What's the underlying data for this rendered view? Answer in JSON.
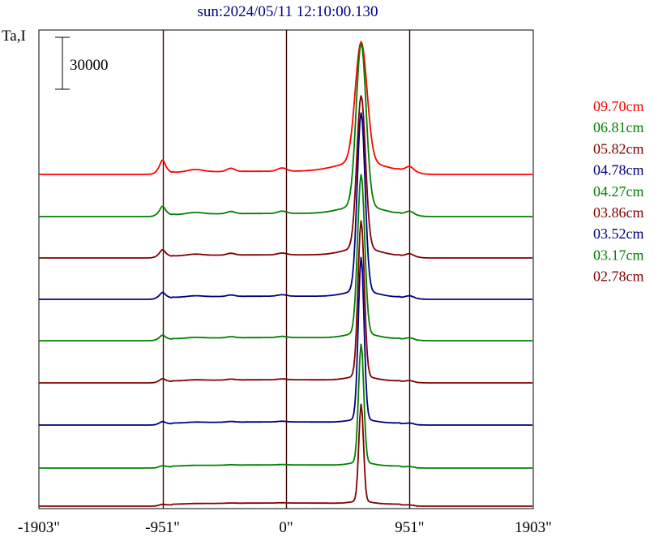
{
  "chart_data": {
    "type": "line",
    "title": "sun:2024/05/11 12:10:00.130",
    "ylabel": "Ta,I",
    "scale_bar_label": "30000",
    "x_ticks": [
      "-1903\"",
      "-951\"",
      "0\"",
      "951\"",
      "1903\""
    ],
    "x_tick_values": [
      -1903,
      -951,
      0,
      951,
      1903
    ],
    "xlim": [
      -1903,
      1903
    ],
    "vertical_lines": [
      -951,
      0,
      951
    ],
    "grid": false,
    "legend_position": "right",
    "series": [
      {
        "name": "09.70cm",
        "color": "#ff0000"
      },
      {
        "name": "06.81cm",
        "color": "#008000"
      },
      {
        "name": "05.82cm",
        "color": "#800000"
      },
      {
        "name": "04.78cm",
        "color": "#000080"
      },
      {
        "name": "04.27cm",
        "color": "#008000"
      },
      {
        "name": "03.86cm",
        "color": "#800000"
      },
      {
        "name": "03.52cm",
        "color": "#000080"
      },
      {
        "name": "03.17cm",
        "color": "#008000"
      },
      {
        "name": "02.78cm",
        "color": "#800000"
      }
    ]
  }
}
